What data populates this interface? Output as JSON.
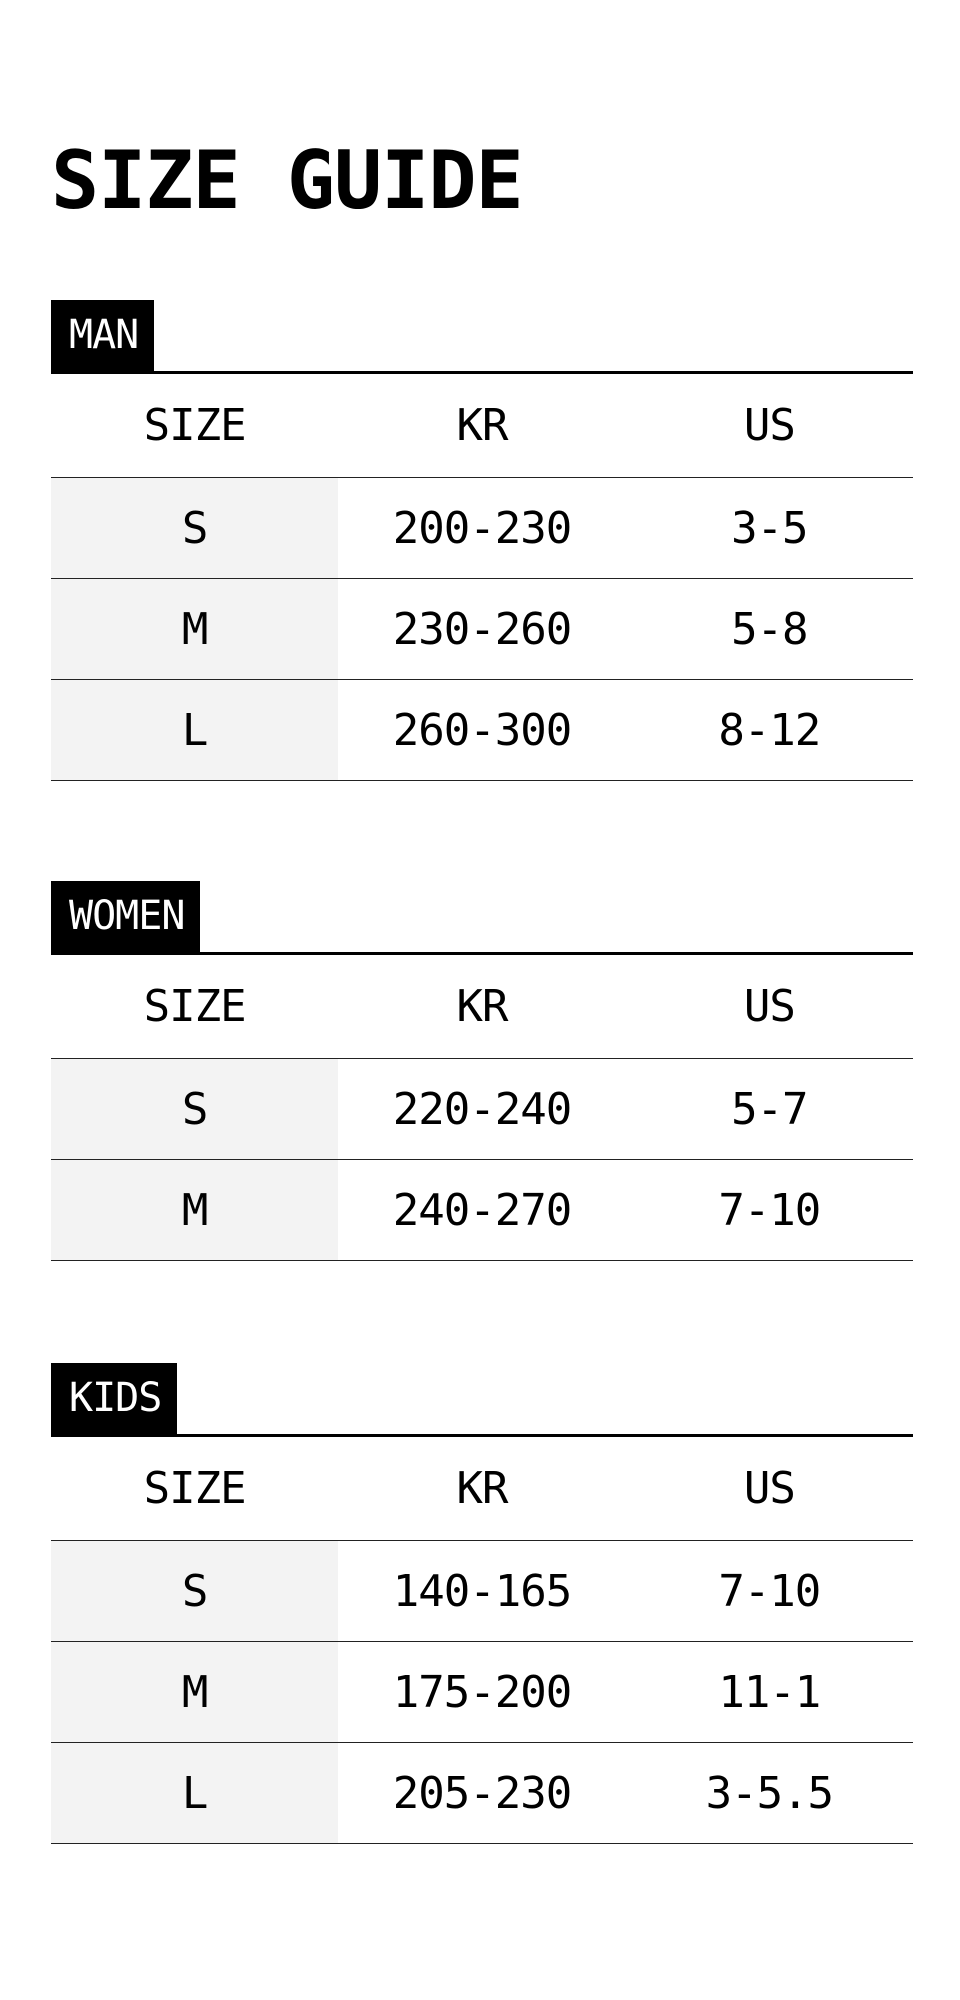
{
  "title": "SIZE GUIDE",
  "columns": [
    "SIZE",
    "KR",
    "US"
  ],
  "sections": [
    {
      "label": "MAN",
      "rows": [
        [
          "S",
          "200-230",
          "3-5"
        ],
        [
          "M",
          "230-260",
          "5-8"
        ],
        [
          "L",
          "260-300",
          "8-12"
        ]
      ]
    },
    {
      "label": "WOMEN",
      "rows": [
        [
          "S",
          "220-240",
          "5-7"
        ],
        [
          "M",
          "240-270",
          "7-10"
        ]
      ]
    },
    {
      "label": "KIDS",
      "rows": [
        [
          "S",
          "140-165",
          "7-10"
        ],
        [
          "M",
          "175-200",
          "11-1"
        ],
        [
          "L",
          "205-230",
          "3-5.5"
        ]
      ]
    }
  ],
  "colors": {
    "text": "#000000",
    "tag_bg": "#000000",
    "size_col_bg": "#f3f3f3"
  }
}
